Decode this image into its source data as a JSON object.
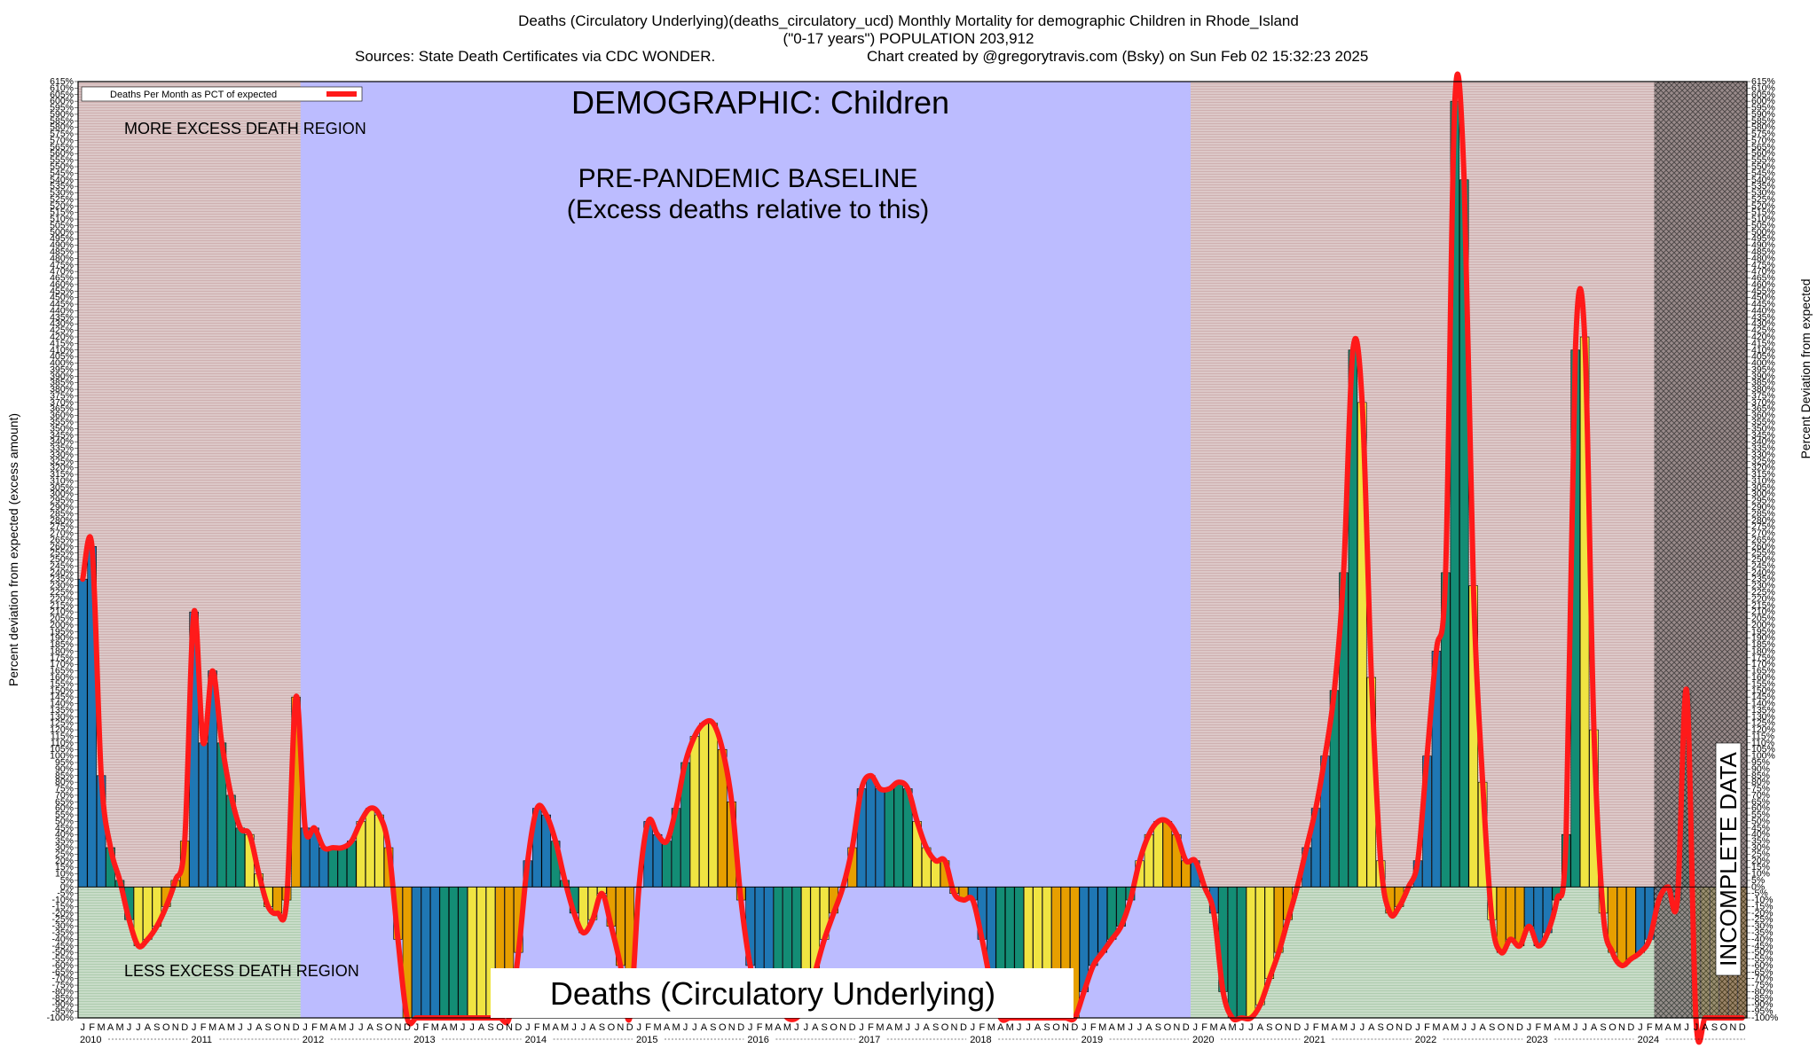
{
  "chart_data": {
    "type": "bar",
    "title_lines": [
      "Deaths (Circulatory Underlying)(deaths_circulatory_ucd) Monthly Mortality for demographic Children in Rhode_Island",
      "(\"0-17 years\") POPULATION 203,912"
    ],
    "sources": "Sources: State Death Certificates via CDC WONDER.",
    "credit": "Chart created by @gregorytravis.com (Bsky) on Sun Feb 02 15:32:23 2025",
    "ylabel_left": "Percent deviation from expected (excess amount)",
    "ylabel_right": "Percent Deviation from expected",
    "legend_label": "Deaths Per Month as PCT of expected",
    "ylim": [
      -100,
      615
    ],
    "ytick_step": 5,
    "start_year": 2010,
    "month_letters": [
      "J",
      "F",
      "M",
      "A",
      "M",
      "J",
      "J",
      "A",
      "S",
      "O",
      "N",
      "D"
    ],
    "years": [
      "2010",
      "2011",
      "2012",
      "2013",
      "2014",
      "2015",
      "2016",
      "2017",
      "2018",
      "2019",
      "2020",
      "2021",
      "2022",
      "2023",
      "2024"
    ],
    "values": [
      235,
      260,
      85,
      30,
      5,
      -25,
      -45,
      -40,
      -30,
      -15,
      5,
      35,
      210,
      110,
      165,
      110,
      70,
      45,
      40,
      10,
      -15,
      -20,
      -10,
      145,
      45,
      45,
      30,
      30,
      30,
      35,
      50,
      60,
      55,
      30,
      -40,
      -100,
      -100,
      -100,
      -100,
      -100,
      -100,
      -100,
      -100,
      -100,
      -100,
      -100,
      -100,
      -50,
      20,
      60,
      55,
      35,
      5,
      -20,
      -35,
      -25,
      -5,
      -30,
      -60,
      -100,
      0,
      50,
      40,
      35,
      60,
      95,
      115,
      125,
      125,
      105,
      65,
      -10,
      -60,
      -85,
      -90,
      -90,
      -100,
      -100,
      -90,
      -65,
      -40,
      -20,
      0,
      30,
      75,
      85,
      75,
      75,
      80,
      75,
      50,
      30,
      20,
      20,
      -5,
      -10,
      -10,
      -40,
      -75,
      -100,
      -100,
      -100,
      -100,
      -100,
      -100,
      -100,
      -100,
      -100,
      -80,
      -60,
      -50,
      -40,
      -30,
      -10,
      20,
      40,
      50,
      50,
      40,
      20,
      20,
      0,
      -20,
      -80,
      -100,
      -100,
      -100,
      -90,
      -70,
      -50,
      -25,
      0,
      30,
      60,
      100,
      150,
      240,
      410,
      370,
      160,
      20,
      -20,
      -15,
      0,
      20,
      100,
      180,
      240,
      600,
      540,
      230,
      80,
      -25,
      -50,
      -40,
      -45,
      -30,
      -45,
      -35,
      -10,
      40,
      410,
      420,
      120,
      -20,
      -50,
      -60,
      -55,
      -50,
      -40,
      -10,
      0,
      -10,
      150,
      -100,
      -100,
      -100,
      -100,
      -100,
      -100
    ],
    "regions": [
      {
        "label": "MORE EXCESS DEATH REGION",
        "where": "above zero outside the baseline"
      },
      {
        "label": "LESS EXCESS DEATH REGION",
        "where": "below zero outside the baseline"
      },
      {
        "label": "PRE-PANDEMIC BASELINE",
        "sub": "(Excess deaths relative to this)",
        "from": "2012-01",
        "to": "2019-12"
      },
      {
        "label": "INCOMPLETE DATA",
        "from": "2024-03"
      }
    ],
    "demographic_label": "DEMOGRAPHIC: Children",
    "cause_label": "Deaths (Circulatory Underlying)",
    "bar_colors": [
      "#1f77b4",
      "#138d75",
      "#f0e442",
      "#e69f00"
    ],
    "line_color": "#ff1a1a",
    "baseline_color": "#bcbcff",
    "excess_color": "#dcc8c8",
    "deficit_color": "#c8dcc8"
  }
}
